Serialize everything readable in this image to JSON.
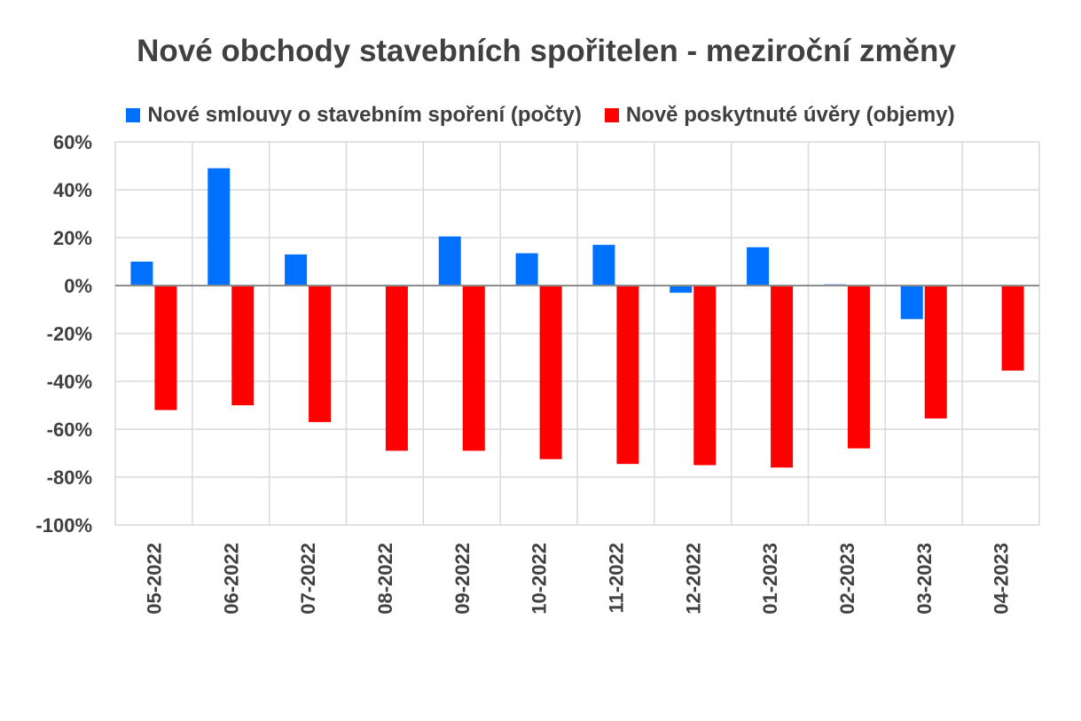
{
  "chart_data": {
    "type": "bar",
    "title": "Nové obchody stavebních spořitelen - meziroční změny",
    "categories": [
      "05-2022",
      "06-2022",
      "07-2022",
      "08-2022",
      "09-2022",
      "10-2022",
      "11-2022",
      "12-2022",
      "01-2023",
      "02-2023",
      "03-2023",
      "04-2023"
    ],
    "series": [
      {
        "name": "Nové smlouvy o stavebním spoření (počty)",
        "color": "#0070ff",
        "values": [
          10,
          49,
          13,
          0,
          20.5,
          13.5,
          17,
          -3,
          16,
          0.5,
          -14,
          0
        ]
      },
      {
        "name": "Nově poskytnuté úvěry (objemy)",
        "color": "#ff0000",
        "values": [
          -52,
          -50,
          -57,
          -69,
          -69,
          -72.5,
          -74.5,
          -75,
          -76,
          -68,
          -55.5,
          -35.5
        ]
      }
    ],
    "ylim": [
      -100,
      60
    ],
    "yticks": [
      "60%",
      "40%",
      "20%",
      "0%",
      "-20%",
      "-40%",
      "-60%",
      "-80%",
      "-100%"
    ],
    "ytick_values": [
      60,
      40,
      20,
      0,
      -20,
      -40,
      -60,
      -80,
      -100
    ],
    "grid": true,
    "legend_position": "top",
    "xlabel": "",
    "ylabel": ""
  }
}
